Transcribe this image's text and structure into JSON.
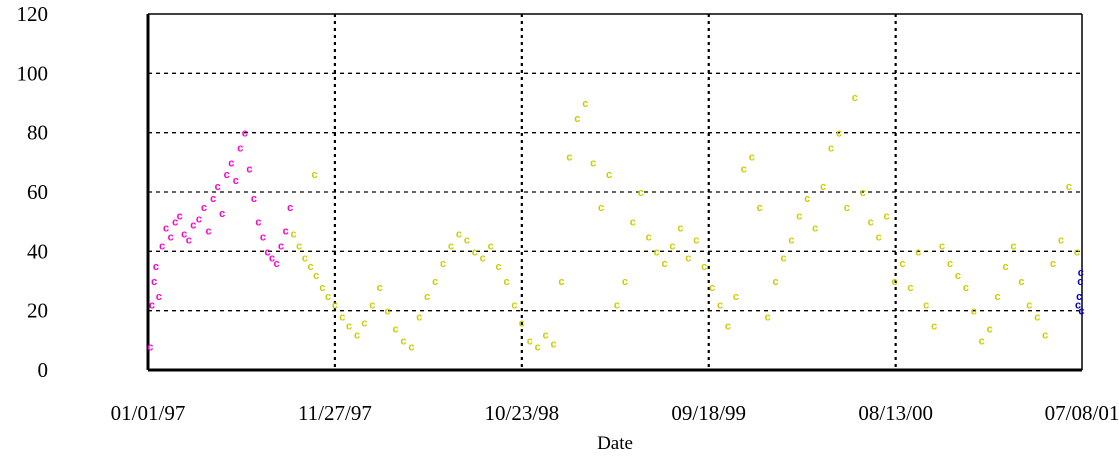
{
  "chart_data": {
    "type": "scatter",
    "title": "",
    "xlabel": "Date",
    "ylabel": "",
    "x_ticks": [
      "01/01/97",
      "11/27/97",
      "10/23/98",
      "09/18/99",
      "08/13/00",
      "07/08/01"
    ],
    "xlim": [
      "01/01/97",
      "07/08/01"
    ],
    "y_ticks": [
      "0",
      "20",
      "40",
      "60",
      "80",
      "100",
      "120"
    ],
    "ylim": [
      0,
      120
    ],
    "grid": true,
    "legend": "none",
    "series": [
      {
        "color": "#ff00cc",
        "marker": "c",
        "points": [
          [
            "01/05/97",
            8
          ],
          [
            "01/08/97",
            22
          ],
          [
            "01/12/97",
            30
          ],
          [
            "01/15/97",
            35
          ],
          [
            "01/20/97",
            25
          ],
          [
            "01/26/97",
            42
          ],
          [
            "02/02/97",
            48
          ],
          [
            "02/10/97",
            45
          ],
          [
            "02/18/97",
            50
          ],
          [
            "02/26/97",
            52
          ],
          [
            "03/06/97",
            46
          ],
          [
            "03/14/97",
            44
          ],
          [
            "03/22/97",
            49
          ],
          [
            "04/01/97",
            51
          ],
          [
            "04/10/97",
            55
          ],
          [
            "04/18/97",
            47
          ],
          [
            "04/26/97",
            58
          ],
          [
            "05/04/97",
            62
          ],
          [
            "05/12/97",
            53
          ],
          [
            "05/20/97",
            66
          ],
          [
            "05/28/97",
            70
          ],
          [
            "06/05/97",
            64
          ],
          [
            "06/13/97",
            75
          ],
          [
            "06/21/97",
            80
          ],
          [
            "06/29/97",
            68
          ],
          [
            "07/07/97",
            58
          ],
          [
            "07/15/97",
            50
          ],
          [
            "07/23/97",
            45
          ],
          [
            "07/31/97",
            40
          ],
          [
            "08/08/97",
            38
          ],
          [
            "08/16/97",
            36
          ],
          [
            "08/24/97",
            42
          ],
          [
            "09/01/97",
            47
          ],
          [
            "09/09/97",
            55
          ]
        ]
      },
      {
        "color": "#cccc00",
        "marker": "c",
        "points": [
          [
            "09/15/97",
            46
          ],
          [
            "09/25/97",
            42
          ],
          [
            "10/05/97",
            38
          ],
          [
            "10/15/97",
            35
          ],
          [
            "10/22/97",
            66
          ],
          [
            "10/25/97",
            32
          ],
          [
            "11/05/97",
            28
          ],
          [
            "11/15/97",
            25
          ],
          [
            "11/27/97",
            22
          ],
          [
            "12/10/97",
            18
          ],
          [
            "12/22/97",
            15
          ],
          [
            "01/05/98",
            12
          ],
          [
            "01/18/98",
            16
          ],
          [
            "02/01/98",
            22
          ],
          [
            "02/14/98",
            28
          ],
          [
            "02/28/98",
            20
          ],
          [
            "03/14/98",
            14
          ],
          [
            "03/28/98",
            10
          ],
          [
            "04/11/98",
            8
          ],
          [
            "04/25/98",
            18
          ],
          [
            "05/09/98",
            25
          ],
          [
            "05/23/98",
            30
          ],
          [
            "06/06/98",
            36
          ],
          [
            "06/20/98",
            42
          ],
          [
            "07/04/98",
            46
          ],
          [
            "07/18/98",
            44
          ],
          [
            "08/01/98",
            40
          ],
          [
            "08/15/98",
            38
          ],
          [
            "08/29/98",
            42
          ],
          [
            "09/12/98",
            35
          ],
          [
            "09/26/98",
            30
          ],
          [
            "10/10/98",
            22
          ],
          [
            "10/23/98",
            16
          ],
          [
            "11/06/98",
            10
          ],
          [
            "11/20/98",
            8
          ],
          [
            "12/04/98",
            12
          ],
          [
            "12/18/98",
            9
          ],
          [
            "01/01/99",
            30
          ],
          [
            "01/15/99",
            72
          ],
          [
            "01/29/99",
            85
          ],
          [
            "02/12/99",
            90
          ],
          [
            "02/26/99",
            70
          ],
          [
            "03/12/99",
            55
          ],
          [
            "03/26/99",
            66
          ],
          [
            "04/09/99",
            22
          ],
          [
            "04/23/99",
            30
          ],
          [
            "05/07/99",
            50
          ],
          [
            "05/21/99",
            60
          ],
          [
            "06/04/99",
            45
          ],
          [
            "06/18/99",
            40
          ],
          [
            "07/02/99",
            36
          ],
          [
            "07/16/99",
            42
          ],
          [
            "07/30/99",
            48
          ],
          [
            "08/13/99",
            38
          ],
          [
            "08/27/99",
            44
          ],
          [
            "09/10/99",
            35
          ],
          [
            "09/24/99",
            28
          ],
          [
            "10/08/99",
            22
          ],
          [
            "10/22/99",
            15
          ],
          [
            "11/05/99",
            25
          ],
          [
            "11/19/99",
            68
          ],
          [
            "12/03/99",
            72
          ],
          [
            "12/17/99",
            55
          ],
          [
            "12/31/99",
            18
          ],
          [
            "01/14/00",
            30
          ],
          [
            "01/28/00",
            38
          ],
          [
            "02/11/00",
            44
          ],
          [
            "02/25/00",
            52
          ],
          [
            "03/10/00",
            58
          ],
          [
            "03/24/00",
            48
          ],
          [
            "04/07/00",
            62
          ],
          [
            "04/21/00",
            75
          ],
          [
            "05/05/00",
            80
          ],
          [
            "05/19/00",
            55
          ],
          [
            "06/02/00",
            92
          ],
          [
            "06/16/00",
            60
          ],
          [
            "06/30/00",
            50
          ],
          [
            "07/14/00",
            45
          ],
          [
            "07/28/00",
            52
          ],
          [
            "08/11/00",
            30
          ],
          [
            "08/25/00",
            36
          ],
          [
            "09/08/00",
            28
          ],
          [
            "09/22/00",
            40
          ],
          [
            "10/06/00",
            22
          ],
          [
            "10/20/00",
            15
          ],
          [
            "11/03/00",
            42
          ],
          [
            "11/17/00",
            36
          ],
          [
            "12/01/00",
            32
          ],
          [
            "12/15/00",
            28
          ],
          [
            "12/29/00",
            20
          ],
          [
            "01/12/01",
            10
          ],
          [
            "01/26/01",
            14
          ],
          [
            "02/09/01",
            25
          ],
          [
            "02/23/01",
            35
          ],
          [
            "03/09/01",
            42
          ],
          [
            "03/23/01",
            30
          ],
          [
            "04/06/01",
            22
          ],
          [
            "04/20/01",
            18
          ],
          [
            "05/04/01",
            12
          ],
          [
            "05/18/01",
            36
          ],
          [
            "06/01/01",
            44
          ],
          [
            "06/15/01",
            62
          ],
          [
            "06/29/01",
            40
          ]
        ]
      },
      {
        "color": "#0000cc",
        "marker": "c",
        "points": [
          [
            "07/01/01",
            22
          ],
          [
            "07/03/01",
            25
          ],
          [
            "07/05/01",
            30
          ],
          [
            "07/06/01",
            33
          ],
          [
            "07/07/01",
            20
          ]
        ]
      }
    ]
  }
}
